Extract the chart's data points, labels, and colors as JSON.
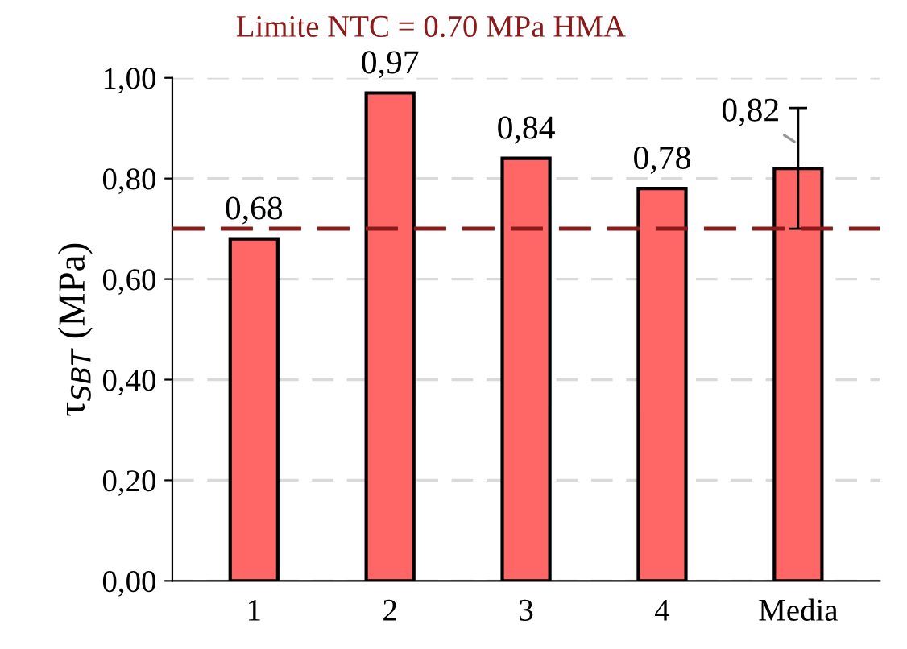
{
  "chart_data": {
    "type": "bar",
    "ylabel": "τ$_{SBT}$ (MPa)",
    "categories": [
      "1",
      "2",
      "3",
      "4",
      "Media"
    ],
    "values": [
      0.68,
      0.97,
      0.84,
      0.78,
      0.82
    ],
    "value_labels": [
      "0,68",
      "0,97",
      "0,84",
      "0,78",
      "0,82"
    ],
    "errors": [
      null,
      null,
      null,
      null,
      0.12
    ],
    "color": "#ff6666",
    "ylim": [
      0,
      1
    ],
    "yticks": [
      {
        "value": 0,
        "label": "0,00"
      },
      {
        "value": 0.2,
        "label": "0,20"
      },
      {
        "value": 0.4,
        "label": "0,40"
      },
      {
        "value": 0.6,
        "label": "0,60"
      },
      {
        "value": 0.8,
        "label": "0,80"
      },
      {
        "value": 1.0,
        "label": "1,00"
      }
    ],
    "grid": "y",
    "ref_lines": [
      {
        "axis": "y",
        "value": 0.7,
        "label": "Limite NTC = 0.70 MPa HMA",
        "color": "#8b1a1a",
        "line_style": "dashed"
      }
    ]
  }
}
